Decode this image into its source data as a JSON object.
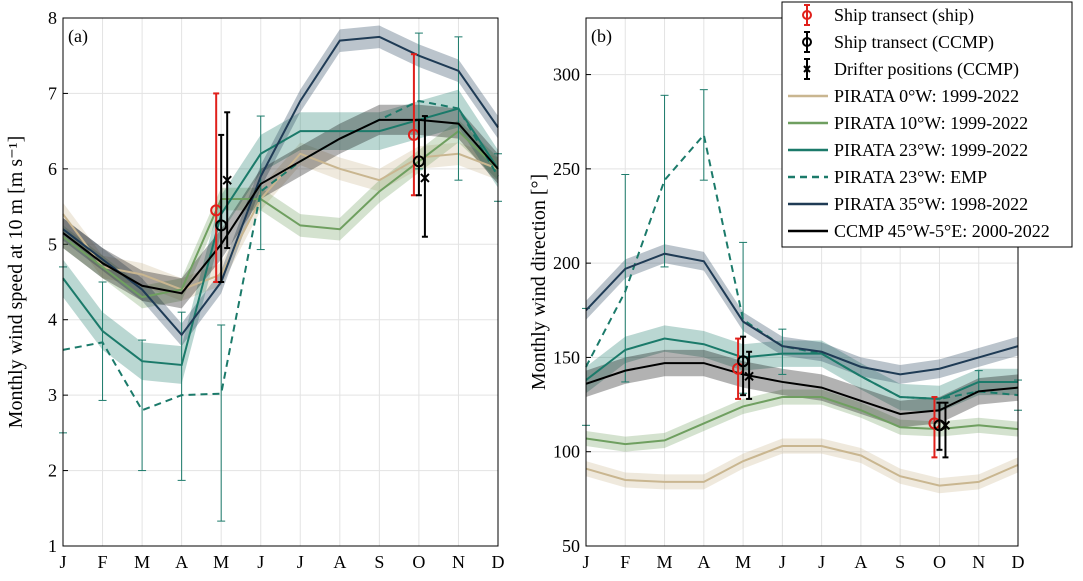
{
  "chart_data": [
    {
      "type": "line",
      "panel_label": "(a)",
      "ylabel": "Monthly wind speed at 10 m [m s⁻¹]",
      "categories": [
        "J",
        "F",
        "M",
        "A",
        "M",
        "J",
        "J",
        "A",
        "S",
        "O",
        "N",
        "D"
      ],
      "ylim": [
        1,
        8
      ],
      "yticks": [
        1,
        2,
        3,
        4,
        5,
        6,
        7,
        8
      ],
      "grid": true,
      "series": [
        {
          "color": "#c9b690",
          "band": 0.15,
          "values": [
            5.4,
            4.7,
            4.6,
            4.4,
            4.6,
            5.6,
            6.2,
            6.0,
            5.85,
            6.15,
            6.2,
            6.0
          ]
        },
        {
          "color": "#6f9f60",
          "band": 0.15,
          "values": [
            5.1,
            4.7,
            4.3,
            4.4,
            5.6,
            5.6,
            5.25,
            5.2,
            5.7,
            6.1,
            6.5,
            6.0
          ]
        },
        {
          "color": "#1b7a6a",
          "band": 0.25,
          "values": [
            4.55,
            3.85,
            3.45,
            3.4,
            5.4,
            6.2,
            6.5,
            6.5,
            6.5,
            6.65,
            6.8,
            6.0
          ]
        },
        {
          "color": "#1b7a6a",
          "dashed": true,
          "values": [
            3.6,
            3.7,
            2.8,
            3.0,
            3.02,
            5.7,
            6.1,
            6.4,
            6.65,
            6.9,
            6.8,
            5.9
          ],
          "lower": [
            2.5,
            2.93,
            2.0,
            1.87,
            1.33,
            4.93,
            null,
            null,
            null,
            6.0,
            5.85,
            5.57
          ],
          "upper": [
            4.7,
            4.5,
            3.73,
            4.1,
            3.93,
            6.7,
            null,
            null,
            null,
            7.8,
            7.75,
            6.2
          ]
        },
        {
          "color": "#1f3b55",
          "band": 0.15,
          "values": [
            5.2,
            4.8,
            4.4,
            3.8,
            4.5,
            5.9,
            6.9,
            7.7,
            7.75,
            7.5,
            7.3,
            6.55
          ]
        },
        {
          "color": "#000000",
          "band": 0.2,
          "values": [
            5.15,
            4.75,
            4.45,
            4.35,
            5.0,
            5.8,
            6.1,
            6.4,
            6.65,
            6.65,
            6.6,
            6.0
          ]
        },
        {
          "color": "#e0201b",
          "marker": "o",
          "values": [
            null,
            null,
            null,
            null,
            5.45,
            null,
            null,
            null,
            null,
            6.45,
            null,
            null
          ],
          "lower": [
            null,
            null,
            null,
            null,
            4.5,
            null,
            null,
            null,
            null,
            5.65,
            null,
            null
          ],
          "upper": [
            null,
            null,
            null,
            null,
            7.0,
            null,
            null,
            null,
            null,
            7.52,
            null,
            null
          ]
        },
        {
          "color": "#000000",
          "marker": "o",
          "values": [
            null,
            null,
            null,
            null,
            5.25,
            null,
            null,
            null,
            null,
            6.1,
            null,
            null
          ],
          "lower": [
            null,
            null,
            null,
            null,
            4.5,
            null,
            null,
            null,
            null,
            5.65,
            null,
            null
          ],
          "upper": [
            null,
            null,
            null,
            null,
            6.45,
            null,
            null,
            null,
            null,
            6.65,
            null,
            null
          ]
        },
        {
          "color": "#000000",
          "marker": "x",
          "values": [
            null,
            null,
            null,
            null,
            5.85,
            null,
            null,
            null,
            null,
            5.88,
            null,
            null
          ],
          "lower": [
            null,
            null,
            null,
            null,
            4.95,
            null,
            null,
            null,
            null,
            5.1,
            null,
            null
          ],
          "upper": [
            null,
            null,
            null,
            null,
            6.75,
            null,
            null,
            null,
            null,
            6.7,
            null,
            null
          ]
        }
      ]
    },
    {
      "type": "line",
      "panel_label": "(b)",
      "ylabel": "Monthly wind direction [°]",
      "categories": [
        "J",
        "F",
        "M",
        "A",
        "M",
        "J",
        "J",
        "A",
        "S",
        "O",
        "N",
        "D"
      ],
      "ylim": [
        50,
        330
      ],
      "yticks": [
        50,
        100,
        150,
        200,
        250,
        300
      ],
      "grid": true,
      "legend": "upper right",
      "series": [
        {
          "name": "PIRATA 0°W: 1999-2022",
          "color": "#c9b690",
          "band": 4,
          "values": [
            91,
            85,
            84,
            84,
            95,
            103,
            103,
            98,
            87,
            82,
            84,
            93
          ]
        },
        {
          "name": "PIRATA 10°W: 1999-2022",
          "color": "#6f9f60",
          "band": 4,
          "values": [
            107,
            104,
            106,
            115,
            124,
            129,
            129,
            122,
            113,
            112,
            114,
            112
          ]
        },
        {
          "name": "PIRATA 23°W: 1999-2022",
          "color": "#1b7a6a",
          "band": 7,
          "values": [
            138,
            154,
            160,
            157,
            150,
            152,
            152,
            140,
            129,
            128,
            137,
            137
          ]
        },
        {
          "name": "PIRATA 23°W: EMP",
          "color": "#1b7a6a",
          "dashed": true,
          "values": [
            145,
            185,
            244,
            268,
            170,
            156,
            152,
            140,
            129,
            128,
            132,
            130
          ],
          "lower": [
            114,
            137,
            198,
            244,
            131,
            141,
            null,
            null,
            null,
            null,
            132,
            122
          ],
          "upper": [
            176,
            247,
            289,
            292,
            211,
            165,
            null,
            null,
            null,
            null,
            143,
            138
          ]
        },
        {
          "name": "PIRATA 35°W: 1998-2022",
          "color": "#1f3b55",
          "band": 5,
          "values": [
            175,
            197,
            205,
            201,
            169,
            156,
            153,
            145,
            141,
            144,
            150,
            156
          ]
        },
        {
          "name": "CCMP 45°W-5°E: 2000-2022",
          "color": "#000000",
          "band": 7,
          "values": [
            136,
            143,
            147,
            147,
            141,
            137,
            134,
            127,
            120,
            122,
            132,
            134
          ]
        },
        {
          "name": "Ship transect (ship)",
          "color": "#e0201b",
          "marker": "o",
          "values": [
            null,
            null,
            null,
            null,
            144,
            null,
            null,
            null,
            null,
            115,
            null,
            null
          ],
          "lower": [
            null,
            null,
            null,
            null,
            128,
            null,
            null,
            null,
            null,
            97,
            null,
            null
          ],
          "upper": [
            null,
            null,
            null,
            null,
            160,
            null,
            null,
            null,
            null,
            129,
            null,
            null
          ]
        },
        {
          "name": "Ship transect (CCMP)",
          "color": "#000000",
          "marker": "o",
          "values": [
            null,
            null,
            null,
            null,
            148,
            null,
            null,
            null,
            null,
            114,
            null,
            null
          ],
          "lower": [
            null,
            null,
            null,
            null,
            130,
            null,
            null,
            null,
            null,
            101,
            null,
            null
          ],
          "upper": [
            null,
            null,
            null,
            null,
            161,
            null,
            null,
            null,
            null,
            126,
            null,
            null
          ]
        },
        {
          "name": "Drifter positions (CCMP)",
          "color": "#000000",
          "marker": "x",
          "values": [
            null,
            null,
            null,
            null,
            140,
            null,
            null,
            null,
            null,
            114,
            null,
            null
          ],
          "lower": [
            null,
            null,
            null,
            null,
            128,
            null,
            null,
            null,
            null,
            97,
            null,
            null
          ],
          "upper": [
            null,
            null,
            null,
            null,
            153,
            null,
            null,
            null,
            null,
            126,
            null,
            null
          ]
        }
      ]
    }
  ]
}
